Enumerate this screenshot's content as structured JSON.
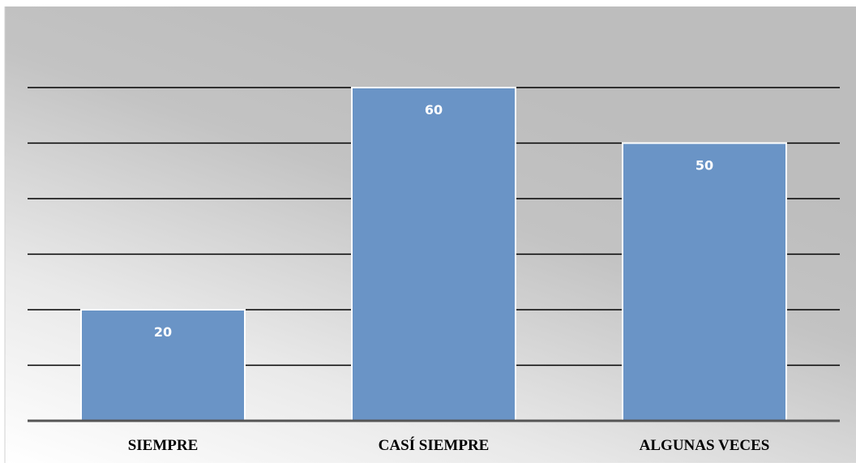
{
  "chart_data": {
    "type": "bar",
    "categories": [
      "SIEMPRE",
      "CASÍ SIEMPRE",
      "ALGUNAS VECES"
    ],
    "values": [
      20,
      60,
      50
    ],
    "title": "",
    "xlabel": "",
    "ylabel": "",
    "ylim": [
      0,
      60
    ],
    "grid": true,
    "data_labels": [
      "20",
      "60",
      "50"
    ],
    "legend": "none",
    "colors": {
      "bar": "#6a94c6",
      "bar_stroke": "#ffffff",
      "gridline": "#000000",
      "axis": "#555555",
      "background_light": "#f5f5f5",
      "background_dark": "#bfbfbf"
    }
  }
}
